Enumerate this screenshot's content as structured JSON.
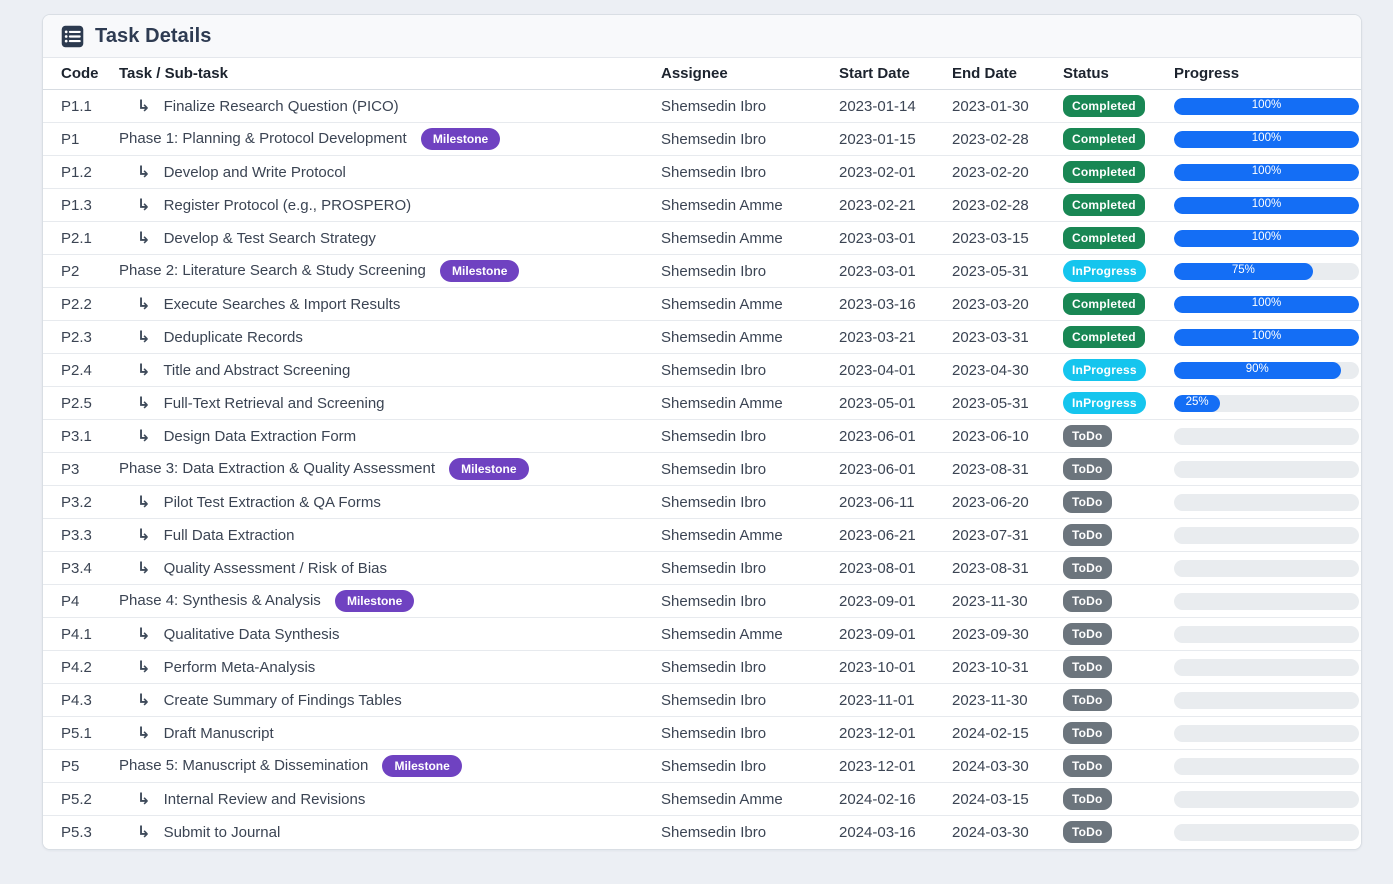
{
  "colors": {
    "page_bg": "#eceff4",
    "card_bg": "#ffffff",
    "card_border": "#d9dee4",
    "header_bg": "#f8f9fb",
    "title_color": "#2e3b52",
    "accent_blue": "#146ef5",
    "track_gray": "#e9ecef",
    "status_completed": "#198754",
    "status_inprogress": "#15c5ee",
    "status_todo": "#6c757d",
    "milestone_purple": "#6f42c1"
  },
  "header": {
    "title": "Task Details",
    "icon": "list-icon"
  },
  "table": {
    "columns": [
      {
        "key": "code",
        "label": "Code"
      },
      {
        "key": "task",
        "label": "Task / Sub-task"
      },
      {
        "key": "assignee",
        "label": "Assignee"
      },
      {
        "key": "start",
        "label": "Start Date"
      },
      {
        "key": "end",
        "label": "End Date"
      },
      {
        "key": "status",
        "label": "Status"
      },
      {
        "key": "progress",
        "label": "Progress"
      }
    ],
    "milestone_badge_label": "Milestone",
    "subtask_arrow_icon": "↳",
    "rows": [
      {
        "code": "P1.1",
        "task": "Finalize Research Question (PICO)",
        "type": "subtask",
        "assignee": "Shemsedin Ibro",
        "start": "2023-01-14",
        "end": "2023-01-30",
        "status": "Completed",
        "progress": 100
      },
      {
        "code": "P1",
        "task": "Phase 1: Planning & Protocol Development",
        "type": "phase",
        "assignee": "Shemsedin Ibro",
        "start": "2023-01-15",
        "end": "2023-02-28",
        "status": "Completed",
        "progress": 100
      },
      {
        "code": "P1.2",
        "task": "Develop and Write Protocol",
        "type": "subtask",
        "assignee": "Shemsedin Ibro",
        "start": "2023-02-01",
        "end": "2023-02-20",
        "status": "Completed",
        "progress": 100
      },
      {
        "code": "P1.3",
        "task": "Register Protocol (e.g., PROSPERO)",
        "type": "subtask",
        "assignee": "Shemsedin Amme",
        "start": "2023-02-21",
        "end": "2023-02-28",
        "status": "Completed",
        "progress": 100
      },
      {
        "code": "P2.1",
        "task": "Develop & Test Search Strategy",
        "type": "subtask",
        "assignee": "Shemsedin Amme",
        "start": "2023-03-01",
        "end": "2023-03-15",
        "status": "Completed",
        "progress": 100
      },
      {
        "code": "P2",
        "task": "Phase 2: Literature Search & Study Screening",
        "type": "phase",
        "assignee": "Shemsedin Ibro",
        "start": "2023-03-01",
        "end": "2023-05-31",
        "status": "InProgress",
        "progress": 75
      },
      {
        "code": "P2.2",
        "task": "Execute Searches & Import Results",
        "type": "subtask",
        "assignee": "Shemsedin Amme",
        "start": "2023-03-16",
        "end": "2023-03-20",
        "status": "Completed",
        "progress": 100
      },
      {
        "code": "P2.3",
        "task": "Deduplicate Records",
        "type": "subtask",
        "assignee": "Shemsedin Amme",
        "start": "2023-03-21",
        "end": "2023-03-31",
        "status": "Completed",
        "progress": 100
      },
      {
        "code": "P2.4",
        "task": "Title and Abstract Screening",
        "type": "subtask",
        "assignee": "Shemsedin Ibro",
        "start": "2023-04-01",
        "end": "2023-04-30",
        "status": "InProgress",
        "progress": 90
      },
      {
        "code": "P2.5",
        "task": "Full-Text Retrieval and Screening",
        "type": "subtask",
        "assignee": "Shemsedin Amme",
        "start": "2023-05-01",
        "end": "2023-05-31",
        "status": "InProgress",
        "progress": 25
      },
      {
        "code": "P3.1",
        "task": "Design Data Extraction Form",
        "type": "subtask",
        "assignee": "Shemsedin Ibro",
        "start": "2023-06-01",
        "end": "2023-06-10",
        "status": "ToDo",
        "progress": 0
      },
      {
        "code": "P3",
        "task": "Phase 3: Data Extraction & Quality Assessment",
        "type": "phase",
        "assignee": "Shemsedin Ibro",
        "start": "2023-06-01",
        "end": "2023-08-31",
        "status": "ToDo",
        "progress": 0
      },
      {
        "code": "P3.2",
        "task": "Pilot Test Extraction & QA Forms",
        "type": "subtask",
        "assignee": "Shemsedin Ibro",
        "start": "2023-06-11",
        "end": "2023-06-20",
        "status": "ToDo",
        "progress": 0
      },
      {
        "code": "P3.3",
        "task": "Full Data Extraction",
        "type": "subtask",
        "assignee": "Shemsedin Amme",
        "start": "2023-06-21",
        "end": "2023-07-31",
        "status": "ToDo",
        "progress": 0
      },
      {
        "code": "P3.4",
        "task": "Quality Assessment / Risk of Bias",
        "type": "subtask",
        "assignee": "Shemsedin Ibro",
        "start": "2023-08-01",
        "end": "2023-08-31",
        "status": "ToDo",
        "progress": 0
      },
      {
        "code": "P4",
        "task": "Phase 4: Synthesis & Analysis",
        "type": "phase",
        "assignee": "Shemsedin Ibro",
        "start": "2023-09-01",
        "end": "2023-11-30",
        "status": "ToDo",
        "progress": 0
      },
      {
        "code": "P4.1",
        "task": "Qualitative Data Synthesis",
        "type": "subtask",
        "assignee": "Shemsedin Amme",
        "start": "2023-09-01",
        "end": "2023-09-30",
        "status": "ToDo",
        "progress": 0
      },
      {
        "code": "P4.2",
        "task": "Perform Meta-Analysis",
        "type": "subtask",
        "assignee": "Shemsedin Ibro",
        "start": "2023-10-01",
        "end": "2023-10-31",
        "status": "ToDo",
        "progress": 0
      },
      {
        "code": "P4.3",
        "task": "Create Summary of Findings Tables",
        "type": "subtask",
        "assignee": "Shemsedin Ibro",
        "start": "2023-11-01",
        "end": "2023-11-30",
        "status": "ToDo",
        "progress": 0
      },
      {
        "code": "P5.1",
        "task": "Draft Manuscript",
        "type": "subtask",
        "assignee": "Shemsedin Ibro",
        "start": "2023-12-01",
        "end": "2024-02-15",
        "status": "ToDo",
        "progress": 0
      },
      {
        "code": "P5",
        "task": "Phase 5: Manuscript & Dissemination",
        "type": "phase",
        "assignee": "Shemsedin Ibro",
        "start": "2023-12-01",
        "end": "2024-03-30",
        "status": "ToDo",
        "progress": 0
      },
      {
        "code": "P5.2",
        "task": "Internal Review and Revisions",
        "type": "subtask",
        "assignee": "Shemsedin Amme",
        "start": "2024-02-16",
        "end": "2024-03-15",
        "status": "ToDo",
        "progress": 0
      },
      {
        "code": "P5.3",
        "task": "Submit to Journal",
        "type": "subtask",
        "assignee": "Shemsedin Ibro",
        "start": "2024-03-16",
        "end": "2024-03-30",
        "status": "ToDo",
        "progress": 0
      }
    ]
  }
}
